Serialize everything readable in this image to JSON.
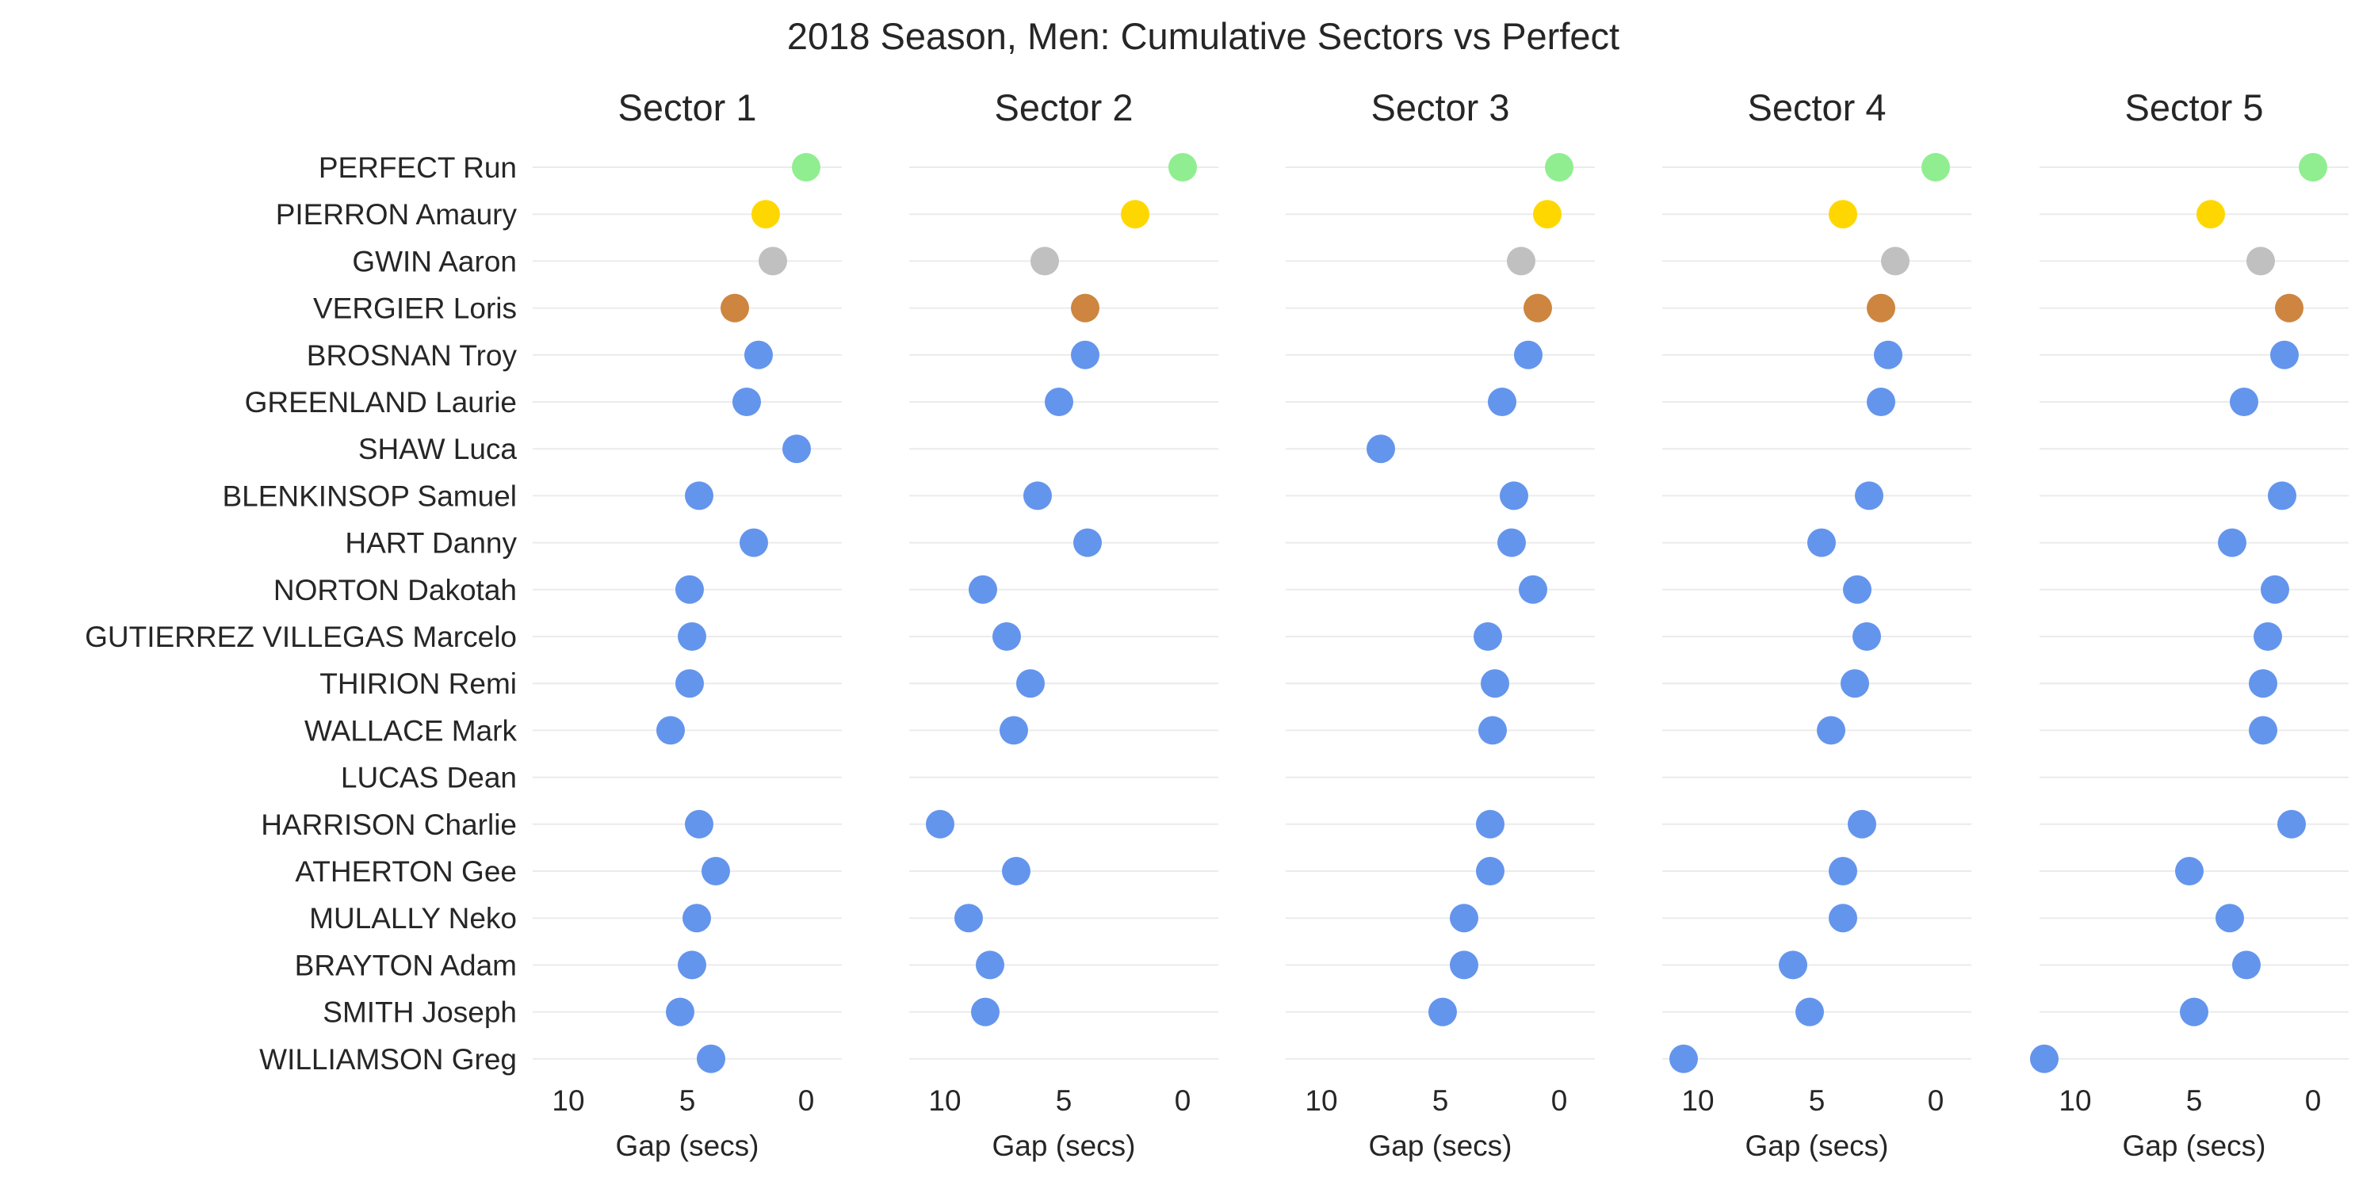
{
  "chart_data": {
    "type": "scatter",
    "title": "2018 Season, Men: Cumulative Sectors vs Perfect",
    "riders": [
      "PERFECT Run",
      "PIERRON Amaury",
      "GWIN Aaron",
      "VERGIER Loris",
      "BROSNAN Troy",
      "GREENLAND Laurie",
      "SHAW Luca",
      "BLENKINSOP Samuel",
      "HART Danny",
      "NORTON Dakotah",
      "GUTIERREZ VILLEGAS Marcelo",
      "THIRION Remi",
      "WALLACE Mark",
      "LUCAS Dean",
      "HARRISON Charlie",
      "ATHERTON Gee",
      "MULALLY Neko",
      "BRAYTON Adam",
      "SMITH Joseph",
      "WILLIAMSON Greg"
    ],
    "xlabel": "Gap (secs)",
    "xlim": [
      11.5,
      -1.5
    ],
    "x_inverted": true,
    "xticks": [
      10,
      5,
      0
    ],
    "xtick_labels": [
      "10",
      "5",
      "0"
    ],
    "grid": "horizontal",
    "colors": {
      "perfect": "#90ee90",
      "first": "#ffd700",
      "second": "#c0c0c0",
      "third": "#cd853f",
      "other": "#6495ed"
    },
    "point_categories": [
      "perfect",
      "first",
      "second",
      "third",
      "other",
      "other",
      "other",
      "other",
      "other",
      "other",
      "other",
      "other",
      "other",
      "other",
      "other",
      "other",
      "other",
      "other",
      "other",
      "other"
    ],
    "panels": [
      {
        "title": "Sector 1",
        "values": [
          0,
          1.7,
          1.4,
          3.0,
          2.0,
          2.5,
          0.4,
          4.5,
          2.2,
          4.9,
          4.8,
          4.9,
          5.7,
          null,
          4.5,
          3.8,
          4.6,
          4.8,
          5.3,
          4.0
        ]
      },
      {
        "title": "Sector 2",
        "values": [
          0,
          2.0,
          5.8,
          4.1,
          4.1,
          5.2,
          null,
          6.1,
          4.0,
          8.4,
          7.4,
          6.4,
          7.1,
          null,
          10.2,
          7.0,
          9.0,
          8.1,
          8.3,
          null
        ]
      },
      {
        "title": "Sector 3",
        "values": [
          0,
          0.5,
          1.6,
          0.9,
          1.3,
          2.4,
          7.5,
          1.9,
          2.0,
          1.1,
          3.0,
          2.7,
          2.8,
          null,
          2.9,
          2.9,
          4.0,
          4.0,
          4.9,
          null
        ]
      },
      {
        "title": "Sector 4",
        "values": [
          0,
          3.9,
          1.7,
          2.3,
          2.0,
          2.3,
          null,
          2.8,
          4.8,
          3.3,
          2.9,
          3.4,
          4.4,
          null,
          3.1,
          3.9,
          3.9,
          6.0,
          5.3,
          10.6
        ]
      },
      {
        "title": "Sector 5",
        "values": [
          0,
          4.3,
          2.2,
          1.0,
          1.2,
          2.9,
          null,
          1.3,
          3.4,
          1.6,
          1.9,
          2.1,
          2.1,
          null,
          0.9,
          5.2,
          3.5,
          2.8,
          5.0,
          11.3
        ]
      }
    ]
  }
}
